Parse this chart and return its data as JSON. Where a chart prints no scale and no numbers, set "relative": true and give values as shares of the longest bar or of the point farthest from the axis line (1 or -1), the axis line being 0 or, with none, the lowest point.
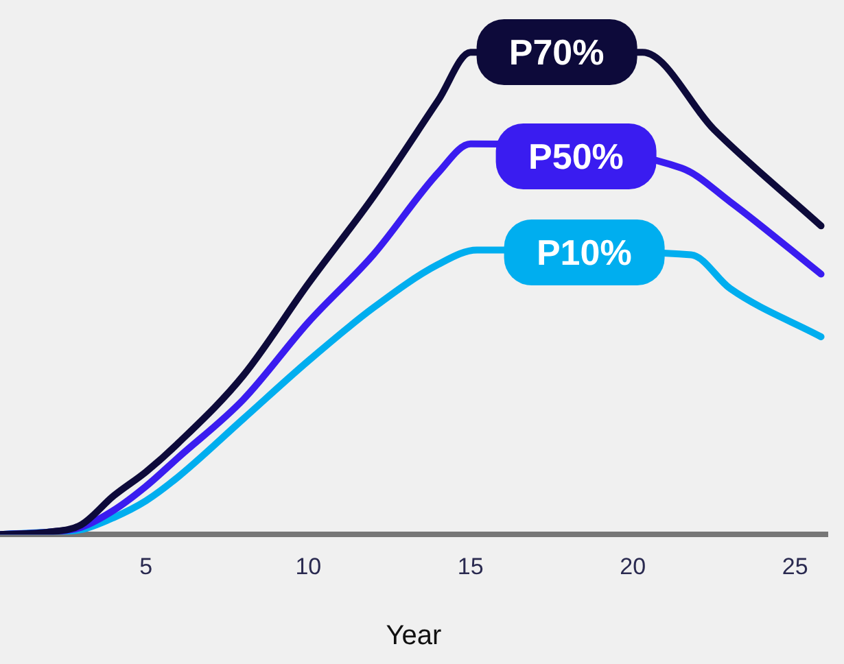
{
  "chart_data": {
    "type": "line",
    "xlabel": "Year",
    "relative": true,
    "xlim": [
      0.5,
      26
    ],
    "xticks": [
      5,
      10,
      15,
      20,
      25
    ],
    "grid": false,
    "legend": false,
    "marker": "none",
    "line_style": "solid",
    "series": [
      {
        "name": "P70%",
        "color": "#0d0a3a",
        "x": [
          0.5,
          2,
          3,
          4,
          5,
          6,
          8,
          10,
          12,
          14,
          15,
          17.7,
          20.3,
          22.5,
          25.8
        ],
        "values": [
          0,
          0.005,
          0.02,
          0.08,
          0.13,
          0.19,
          0.33,
          0.52,
          0.7,
          0.9,
          1,
          null,
          1,
          0.84,
          0.64
        ]
      },
      {
        "name": "P50%",
        "color": "#3a1cf0",
        "x": [
          0.5,
          2,
          3,
          4,
          5,
          6,
          8,
          10,
          12,
          14,
          15,
          18.2,
          21.5,
          23,
          25.8
        ],
        "values": [
          0,
          0.005,
          0.015,
          0.05,
          0.1,
          0.16,
          0.28,
          0.44,
          0.58,
          0.75,
          0.81,
          null,
          0.76,
          0.69,
          0.54
        ]
      },
      {
        "name": "P10%",
        "color": "#00aeef",
        "x": [
          0.5,
          2,
          3,
          4,
          5,
          6,
          8,
          10,
          12,
          14,
          15.2,
          18.4,
          21.8,
          23,
          25.8
        ],
        "values": [
          0,
          0.005,
          0.01,
          0.035,
          0.07,
          0.12,
          0.24,
          0.36,
          0.47,
          0.56,
          0.59,
          null,
          0.58,
          0.51,
          0.41
        ]
      }
    ]
  }
}
